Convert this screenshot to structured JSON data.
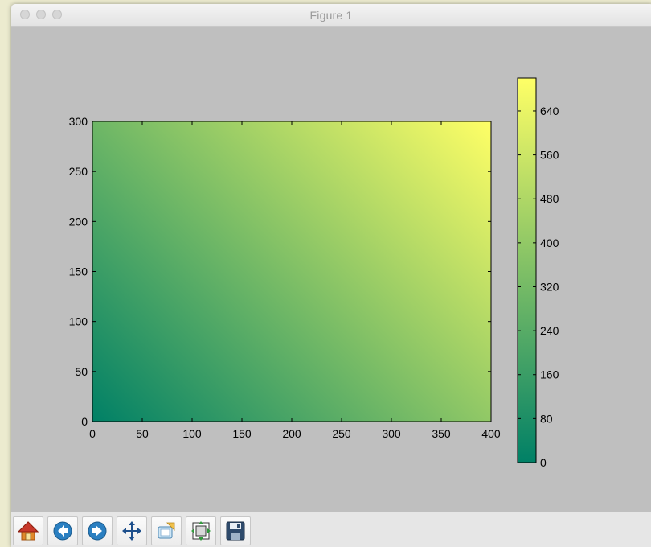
{
  "window": {
    "title": "Figure 1"
  },
  "toolbar": {
    "buttons": [
      {
        "name": "home-button",
        "icon": "home-icon"
      },
      {
        "name": "back-button",
        "icon": "back-arrow-icon"
      },
      {
        "name": "forward-button",
        "icon": "forward-arrow-icon"
      },
      {
        "name": "pan-button",
        "icon": "move-arrows-icon"
      },
      {
        "name": "zoom-button",
        "icon": "zoom-rectangle-icon"
      },
      {
        "name": "configure-subplots-button",
        "icon": "subplots-icon"
      },
      {
        "name": "save-button",
        "icon": "save-disk-icon"
      }
    ]
  },
  "chart_data": {
    "type": "heatmap",
    "title": "",
    "xlabel": "",
    "ylabel": "",
    "xlim": [
      0,
      400
    ],
    "ylim": [
      0,
      300
    ],
    "x_ticks": [
      0,
      50,
      100,
      150,
      200,
      250,
      300,
      350,
      400
    ],
    "y_ticks": [
      0,
      50,
      100,
      150,
      200,
      250,
      300
    ],
    "function": "z = x + y",
    "z_range": [
      0,
      700
    ],
    "colormap": "summer",
    "colormap_colors": [
      "#008066",
      "#ffff66"
    ],
    "colorbar": {
      "ticks": [
        0,
        80,
        160,
        240,
        320,
        400,
        480,
        560,
        640
      ],
      "range": [
        0,
        700
      ]
    },
    "grid": false
  }
}
